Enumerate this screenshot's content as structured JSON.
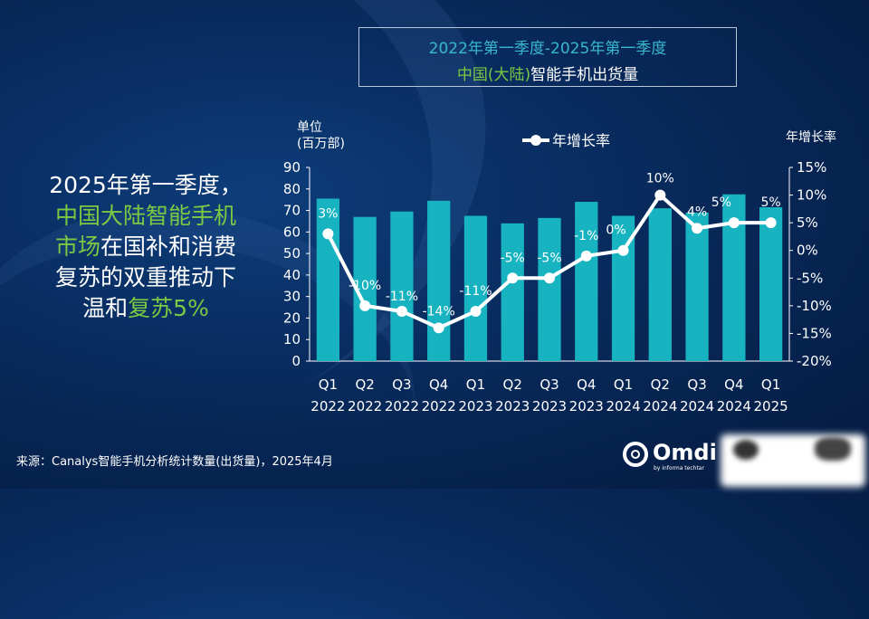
{
  "title": {
    "line1": "2022年第一季度-2025年第一季度",
    "line2_a": "中国",
    "line2_b": "(大陆)",
    "line2_c": "智能手机出货量"
  },
  "headline": {
    "p1": "2025年第一季度，",
    "p2": "中国大陆智能手机",
    "p3": "市场",
    "p4": "在国补和消费",
    "p5": "复苏的双重推动下",
    "p6": "温和",
    "p7": "复苏5%"
  },
  "source": "来源：Canalys智能手机分析统计数量(出货量)，2025年4月",
  "logo": {
    "word": "Omdi",
    "sub": "by informa techtar"
  },
  "colors": {
    "bar": "#17b3c1",
    "line": "#ffffff",
    "green": "#7ac943",
    "teal": "#38b7cf"
  },
  "chart_data": {
    "type": "bar+line",
    "legend": "年增长率",
    "legend_position": "top-center",
    "yleft_label_1": "单位",
    "yleft_label_2": "(百万部)",
    "yright_label": "年增长率",
    "yleft_ticks": [
      "0",
      "10",
      "20",
      "30",
      "40",
      "50",
      "60",
      "70",
      "80",
      "90"
    ],
    "yright_ticks": [
      "15%",
      "10%",
      "5%",
      "0%",
      "-5%",
      "-10%",
      "-15%",
      "-20%"
    ],
    "ylim_left": [
      0,
      90
    ],
    "ylim_right": [
      -20,
      15
    ],
    "categories_q": [
      "Q1",
      "Q2",
      "Q3",
      "Q4",
      "Q1",
      "Q2",
      "Q3",
      "Q4",
      "Q1",
      "Q2",
      "Q3",
      "Q4",
      "Q1"
    ],
    "categories_y": [
      "2022",
      "2022",
      "2022",
      "2022",
      "2023",
      "2023",
      "2023",
      "2023",
      "2024",
      "2024",
      "2024",
      "2024",
      "2025"
    ],
    "shipments": [
      75.5,
      67,
      69.5,
      74.5,
      67.5,
      64,
      66.5,
      74,
      67.5,
      71,
      69,
      77.5,
      71.5
    ],
    "growth": [
      3,
      -10,
      -11,
      -14,
      -11,
      -5,
      -5,
      -1,
      0,
      10,
      4,
      5,
      5
    ],
    "growth_labels": [
      "3%",
      "-10%",
      "-11%",
      "-14%",
      "-11%",
      "-5%",
      "-5%",
      "-1%",
      "0%",
      "10%",
      "4%",
      "5%",
      "5%"
    ],
    "grid": false
  }
}
